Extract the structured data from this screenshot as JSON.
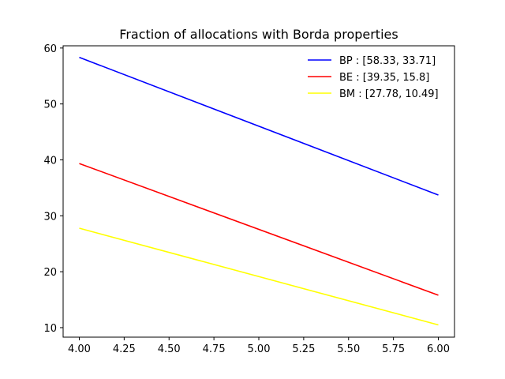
{
  "chart_data": {
    "type": "line",
    "title": "Fraction of allocations with Borda properties",
    "xlabel": "",
    "ylabel": "",
    "xlim": [
      3.91,
      6.09
    ],
    "ylim": [
      8.3,
      60.4
    ],
    "xticks": [
      4.0,
      4.25,
      4.5,
      4.75,
      5.0,
      5.25,
      5.5,
      5.75,
      6.0
    ],
    "xtick_labels": [
      "4.00",
      "4.25",
      "4.50",
      "4.75",
      "5.00",
      "5.25",
      "5.50",
      "5.75",
      "6.00"
    ],
    "yticks": [
      10,
      20,
      30,
      40,
      50,
      60
    ],
    "ytick_labels": [
      "10",
      "20",
      "30",
      "40",
      "50",
      "60"
    ],
    "grid": false,
    "legend_position": "top-right",
    "series": [
      {
        "name": "BP : [58.33, 33.71]",
        "color": "#0000ff",
        "x": [
          4,
          6
        ],
        "y": [
          58.33,
          33.71
        ]
      },
      {
        "name": "BE : [39.35, 15.8]",
        "color": "#ff0000",
        "x": [
          4,
          6
        ],
        "y": [
          39.35,
          15.8
        ]
      },
      {
        "name": "BM : [27.78, 10.49]",
        "color": "#ffff00",
        "x": [
          4,
          6
        ],
        "y": [
          27.78,
          10.49
        ]
      }
    ]
  }
}
